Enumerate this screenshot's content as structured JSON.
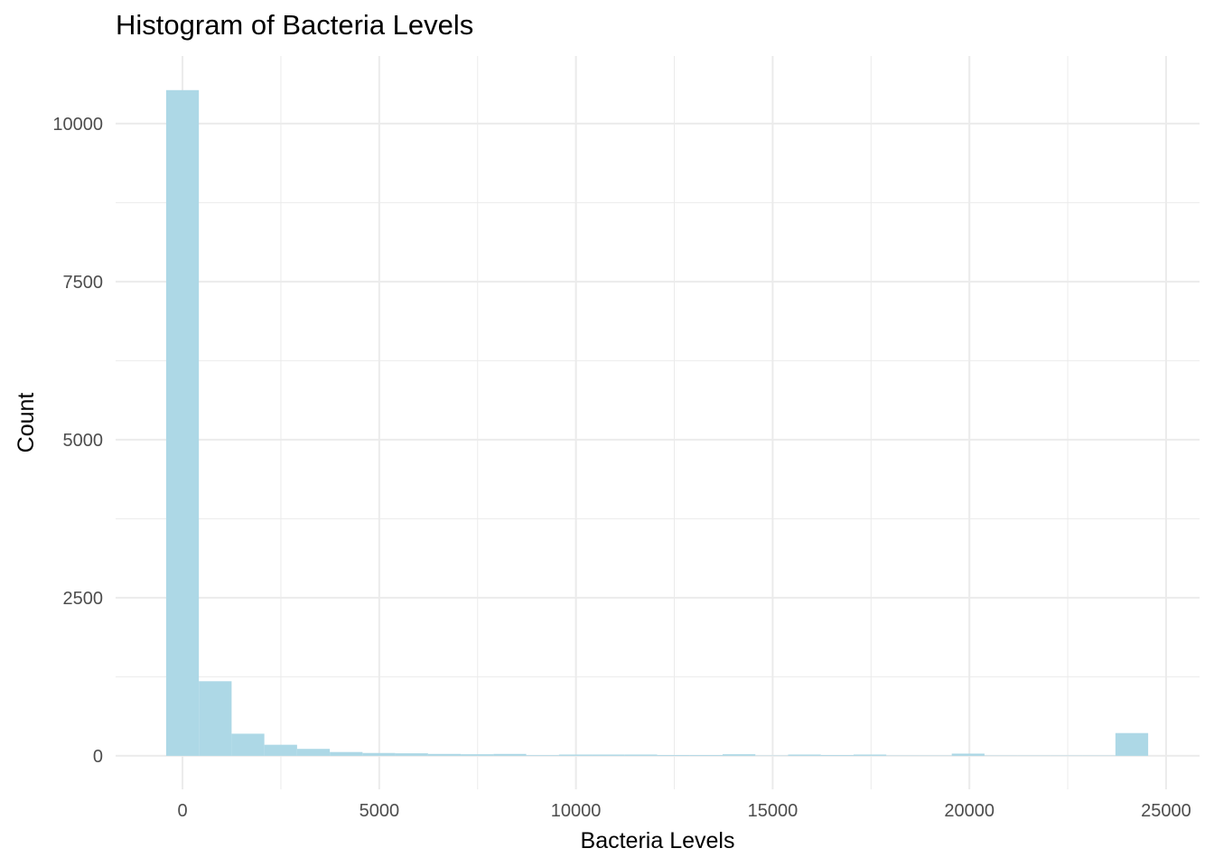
{
  "chart_data": {
    "type": "bar",
    "title": "Histogram of Bacteria Levels",
    "xlabel": "Bacteria Levels",
    "ylabel": "Count",
    "bar_color": "#ADD8E6",
    "grid_color": "#EBEBEB",
    "grid": true,
    "xlim": [
      -1700,
      25850
    ],
    "ylim": [
      -530,
      11070
    ],
    "x_ticks": [
      0,
      5000,
      10000,
      15000,
      20000,
      25000
    ],
    "x_tick_labels": [
      "0",
      "5000",
      "10000",
      "15000",
      "20000",
      "25000"
    ],
    "y_ticks": [
      0,
      2500,
      5000,
      7500,
      10000
    ],
    "y_tick_labels": [
      "0",
      "2500",
      "5000",
      "7500",
      "10000"
    ],
    "bin_width": 832,
    "bin_centers": [
      0,
      832,
      1664,
      2496,
      3328,
      4160,
      4992,
      5824,
      6656,
      7488,
      8320,
      9152,
      9984,
      10816,
      11648,
      12480,
      13312,
      14144,
      14976,
      15808,
      16640,
      17472,
      18304,
      19136,
      19968,
      20800,
      21632,
      22464,
      23296,
      24128
    ],
    "values": [
      10530,
      1180,
      350,
      175,
      110,
      60,
      45,
      40,
      30,
      25,
      30,
      10,
      20,
      20,
      20,
      12,
      12,
      25,
      5,
      20,
      12,
      20,
      5,
      5,
      35,
      5,
      5,
      5,
      5,
      360
    ]
  }
}
